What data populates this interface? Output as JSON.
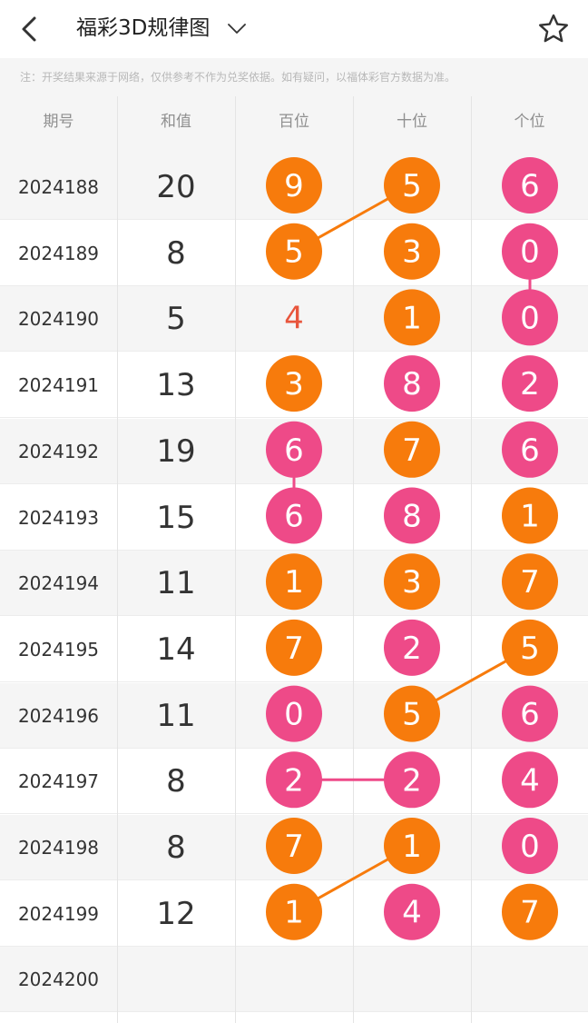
{
  "header": {
    "title": "福彩3D规律图",
    "back_icon": "chevron-left-icon",
    "dropdown_icon": "chevron-down-icon",
    "favorite_icon": "star-outline-icon"
  },
  "notice": "注：开奖结果来源于网络，仅供参考不作为兑奖依据。如有疑问，以福体彩官方数据为准。",
  "table": {
    "columns": [
      "期号",
      "和值",
      "百位",
      "十位",
      "个位"
    ],
    "rows": [
      {
        "period": "2024188",
        "sum": "20",
        "bai": "9",
        "shi": "5",
        "ge": "6"
      },
      {
        "period": "2024189",
        "sum": "8",
        "bai": "5",
        "shi": "3",
        "ge": "0"
      },
      {
        "period": "2024190",
        "sum": "5",
        "bai": "4",
        "shi": "1",
        "ge": "0"
      },
      {
        "period": "2024191",
        "sum": "13",
        "bai": "3",
        "shi": "8",
        "ge": "2"
      },
      {
        "period": "2024192",
        "sum": "19",
        "bai": "6",
        "shi": "7",
        "ge": "6"
      },
      {
        "period": "2024193",
        "sum": "15",
        "bai": "6",
        "shi": "8",
        "ge": "1"
      },
      {
        "period": "2024194",
        "sum": "11",
        "bai": "1",
        "shi": "3",
        "ge": "7"
      },
      {
        "period": "2024195",
        "sum": "14",
        "bai": "7",
        "shi": "2",
        "ge": "5"
      },
      {
        "period": "2024196",
        "sum": "11",
        "bai": "0",
        "shi": "5",
        "ge": "6"
      },
      {
        "period": "2024197",
        "sum": "8",
        "bai": "2",
        "shi": "2",
        "ge": "4"
      },
      {
        "period": "2024198",
        "sum": "8",
        "bai": "7",
        "shi": "1",
        "ge": "0"
      },
      {
        "period": "2024199",
        "sum": "12",
        "bai": "1",
        "shi": "4",
        "ge": "7"
      },
      {
        "period": "2024200",
        "sum": "",
        "bai": "",
        "shi": "",
        "ge": ""
      }
    ]
  },
  "colors": {
    "odd_ball": "#F77B0C",
    "even_ball": "#EE4A88",
    "small_number_text": "#E8553C",
    "header_bg": "#F5F5F5",
    "gridline": "#E4E4E4"
  }
}
